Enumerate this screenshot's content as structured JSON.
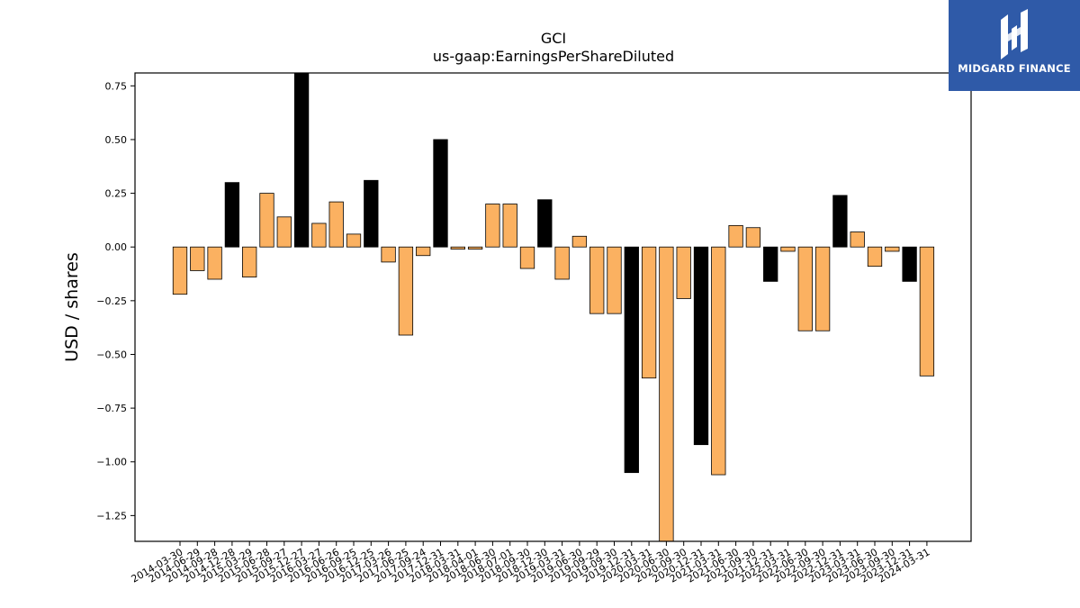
{
  "logo": {
    "text": "MIDGARD FINANCE",
    "icon": "midgard-logo-icon",
    "background": "#2f5aa8"
  },
  "chart_data": {
    "type": "bar",
    "title": "GCI",
    "subtitle": "us-gaap:EarningsPerShareDiluted",
    "xlabel": "",
    "ylabel": "USD / shares",
    "ylim": [
      -1.37,
      0.81
    ],
    "yticks": [
      0.75,
      0.5,
      0.25,
      0.0,
      -0.25,
      -0.5,
      -0.75,
      -1.0,
      -1.25
    ],
    "ytick_labels": [
      "0.75",
      "0.50",
      "0.25",
      "0.00",
      "−0.25",
      "−0.50",
      "−0.75",
      "−1.00",
      "−1.25"
    ],
    "grid": false,
    "colors": {
      "highlight": "#000000",
      "normal": "#fbb161"
    },
    "categories": [
      "2014-03-30",
      "2014-06-29",
      "2014-09-28",
      "2014-12-28",
      "2015-03-29",
      "2015-06-28",
      "2015-09-27",
      "2015-12-27",
      "2016-03-27",
      "2016-06-26",
      "2016-09-25",
      "2016-12-25",
      "2017-03-26",
      "2017-06-25",
      "2017-09-24",
      "2017-12-31",
      "2018-03-31",
      "2018-04-01",
      "2018-06-30",
      "2018-07-01",
      "2018-09-30",
      "2018-12-30",
      "2019-03-31",
      "2019-06-30",
      "2019-09-29",
      "2019-09-30",
      "2019-12-31",
      "2020-03-31",
      "2020-06-30",
      "2020-09-30",
      "2020-12-31",
      "2021-03-31",
      "2021-06-30",
      "2021-09-30",
      "2021-12-31",
      "2022-03-31",
      "2022-06-30",
      "2022-09-30",
      "2022-12-31",
      "2023-03-31",
      "2023-06-30",
      "2023-09-30",
      "2023-12-31",
      "2024-03-31"
    ],
    "values": [
      -0.22,
      -0.11,
      -0.15,
      0.3,
      -0.14,
      0.25,
      0.14,
      0.81,
      0.11,
      0.21,
      0.06,
      0.31,
      -0.07,
      -0.41,
      -0.04,
      0.5,
      -0.01,
      -0.01,
      0.2,
      0.2,
      -0.1,
      0.22,
      -0.15,
      0.05,
      -0.31,
      -0.31,
      -1.05,
      -0.61,
      -1.37,
      -0.24,
      -0.92,
      -1.06,
      0.1,
      0.09,
      -0.16,
      -0.02,
      -0.39,
      -0.39,
      0.24,
      0.07,
      -0.09,
      -0.02,
      -0.16,
      -0.6
    ],
    "highlighted": [
      false,
      false,
      false,
      true,
      false,
      false,
      false,
      true,
      false,
      false,
      false,
      true,
      false,
      false,
      false,
      true,
      false,
      false,
      false,
      false,
      false,
      true,
      false,
      false,
      false,
      false,
      true,
      false,
      false,
      false,
      true,
      false,
      false,
      false,
      true,
      false,
      false,
      false,
      true,
      false,
      false,
      false,
      true,
      false
    ]
  }
}
